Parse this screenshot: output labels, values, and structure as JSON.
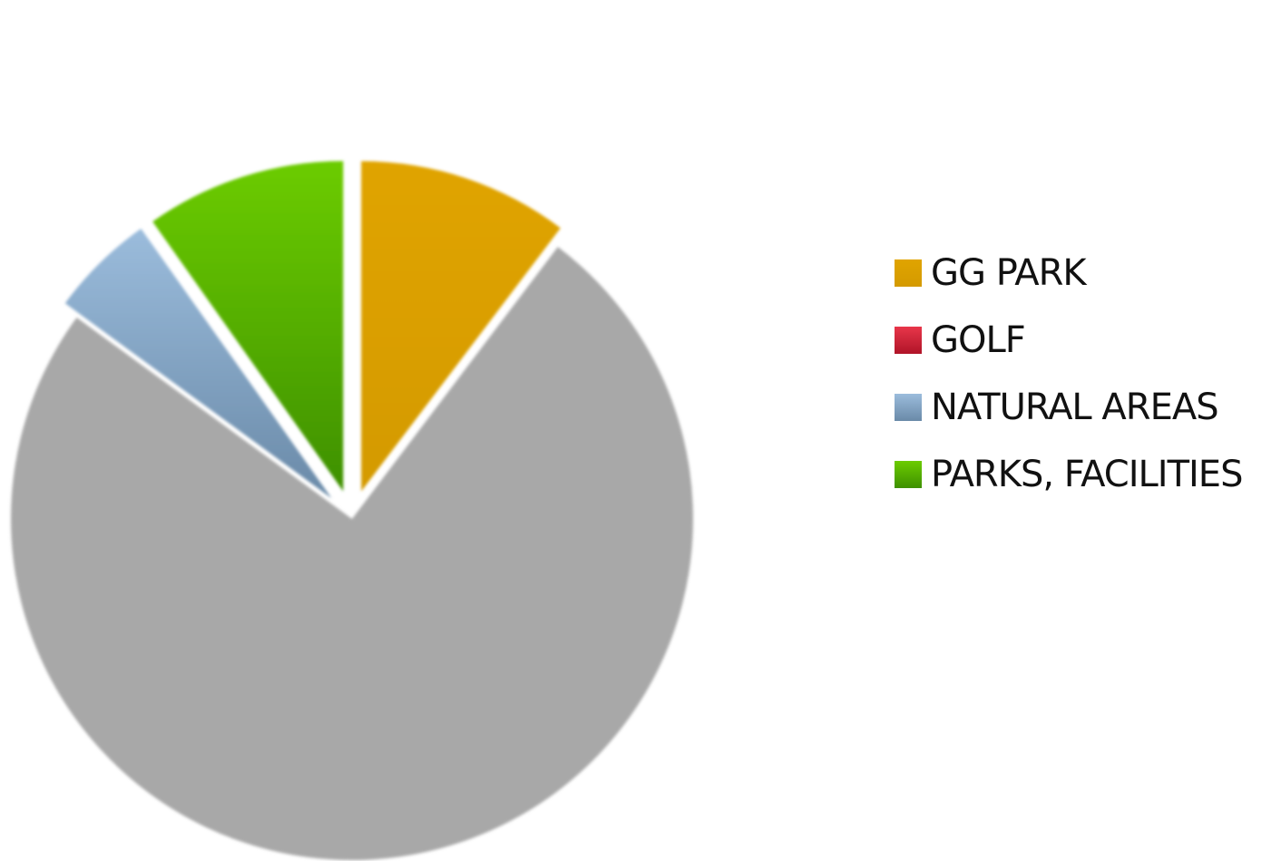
{
  "chart_data": {
    "type": "pie",
    "title": "",
    "legend_position": "right",
    "exploded": true,
    "slices": [
      {
        "label": "GG PARK",
        "value": 10.0,
        "color_top": "#e0a400",
        "color_bottom": "#d49a00"
      },
      {
        "label": "GOLF",
        "value": 0.0,
        "color_top": "#e8364a",
        "color_bottom": "#b01428"
      },
      {
        "label": "",
        "value": 72.5,
        "color_top": "#a8a8a8",
        "color_bottom": "#a8a8a8"
      },
      {
        "label": "NATURAL AREAS",
        "value": 5.0,
        "color_top": "#9bbcdc",
        "color_bottom": "#6a8aa8"
      },
      {
        "label": "PARKS, FACILITIES",
        "value": 9.5,
        "color_top": "#6ccc00",
        "color_bottom": "#3e9000"
      }
    ],
    "legend": [
      {
        "label": "GG PARK",
        "color_top": "#e0a400",
        "color_bottom": "#d49a00"
      },
      {
        "label": "GOLF",
        "color_top": "#e8364a",
        "color_bottom": "#b01428"
      },
      {
        "label": "NATURAL AREAS",
        "color_top": "#9bbcdc",
        "color_bottom": "#6a8aa8"
      },
      {
        "label": "PARKS, FACILITIES",
        "color_top": "#6ccc00",
        "color_bottom": "#3e9000"
      }
    ]
  }
}
